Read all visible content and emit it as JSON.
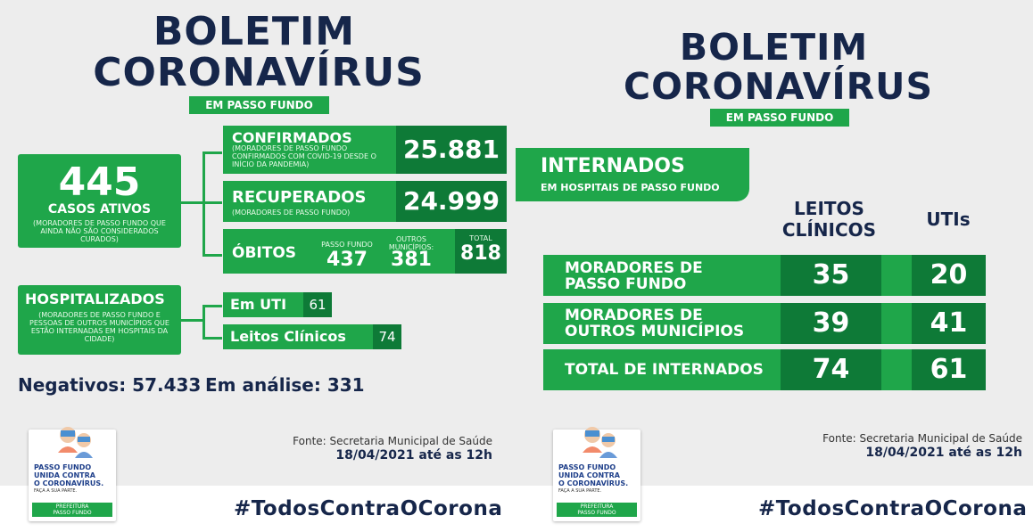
{
  "left": {
    "title1": "BOLETIM",
    "title2": "CORONAVÍRUS",
    "tag": "EM PASSO FUNDO",
    "ativos": {
      "num": "445",
      "label": "CASOS ATIVOS",
      "desc": "(MORADORES DE PASSO FUNDO QUE AINDA NÃO SÃO CONSIDERADOS CURADOS)"
    },
    "confirmados": {
      "label": "CONFIRMADOS",
      "desc": "(MORADORES DE PASSO FUNDO CONFIRMADOS COM COVID-19 DESDE O INÍCIO DA PANDEMIA)",
      "num": "25.881"
    },
    "recuperados": {
      "label": "RECUPERADOS",
      "desc": "(MORADORES DE PASSO FUNDO)",
      "num": "24.999"
    },
    "obitos": {
      "label": "ÓBITOS",
      "pf_label": "PASSO FUNDO",
      "pf_num": "437",
      "outros_label": "OUTROS MUNICÍPIOS:",
      "outros_num": "381",
      "total_label": "TOTAL",
      "total_num": "818"
    },
    "hospitalizados": {
      "label": "HOSPITALIZADOS",
      "desc": "(MORADORES DE PASSO FUNDO E PESSOAS DE OUTROS MUNICÍPIOS QUE ESTÃO INTERNADAS EM HOSPITAIS DA CIDADE)"
    },
    "uti": {
      "label": "Em UTI",
      "num": "61"
    },
    "leitos": {
      "label": "Leitos Clínicos",
      "num": "74"
    },
    "negativos": "Negativos: 57.433",
    "analise": "Em análise: 331",
    "fonte1": "Fonte: Secretaria Municipal de Saúde",
    "fonte2": "18/04/2021 até as 12h",
    "hashtag": "#TodosContraOCorona"
  },
  "right": {
    "title1": "BOLETIM",
    "title2": "CORONAVÍRUS",
    "tag": "EM PASSO FUNDO",
    "internados": "INTERNADOS",
    "internados_sub": "EM HOSPITAIS DE PASSO FUNDO",
    "col_leitos1": "LEITOS",
    "col_leitos2": "CLÍNICOS",
    "col_utis": "UTIs",
    "rows": [
      {
        "l1": "MORADORES DE",
        "l2": "PASSO FUNDO",
        "leitos": "35",
        "utis": "20"
      },
      {
        "l1": "MORADORES DE",
        "l2": "OUTROS MUNICÍPIOS",
        "leitos": "39",
        "utis": "41"
      },
      {
        "l1": "TOTAL DE INTERNADOS",
        "l2": "",
        "leitos": "74",
        "utis": "61"
      }
    ],
    "fonte1": "Fonte: Secretaria Municipal de Saúde",
    "fonte2": "18/04/2021 até as 12h",
    "hashtag": "#TodosContraOCorona"
  },
  "badge": {
    "l1": "PASSO FUNDO",
    "l2": "UNIDA CONTRA",
    "l3": "O CORONAVÍRUS.",
    "l4": "FAÇA A SUA PARTE.",
    "l5": "PREFEITURA",
    "l6": "PASSO FUNDO"
  },
  "colors": {
    "green": "#1fa64a",
    "dark_green": "#0e7a37",
    "navy": "#16264a"
  }
}
